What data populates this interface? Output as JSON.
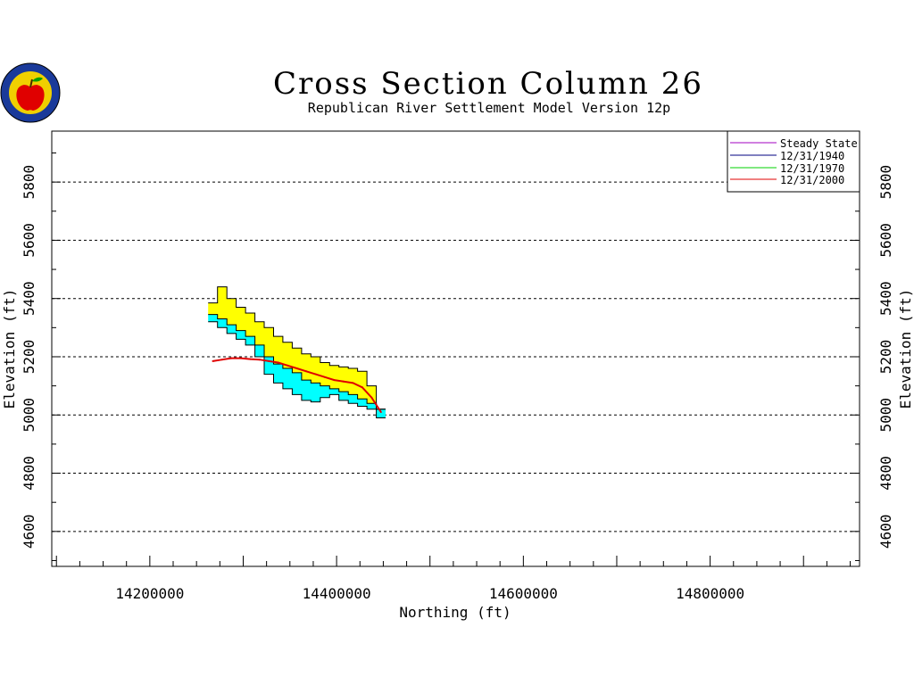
{
  "chart_data": {
    "type": "line",
    "title": "Cross Section Column 26",
    "subtitle": "Republican River Settlement Model Version 12p",
    "xlabel": "Northing (ft)",
    "ylabel": "Elevation (ft)",
    "xlim": [
      14095000,
      14960000
    ],
    "ylim": [
      4480000,
      5975000
    ],
    "xticks": [
      {
        "value": 14200000,
        "label": "14200000"
      },
      {
        "value": 14400000,
        "label": "14400000"
      },
      {
        "value": 14600000,
        "label": "14600000"
      },
      {
        "value": 14800000,
        "label": "14800000"
      }
    ],
    "yticks": [
      {
        "value": 4600,
        "label": "4600"
      },
      {
        "value": 4800,
        "label": "4800"
      },
      {
        "value": 5000,
        "label": "5000"
      },
      {
        "value": 5200,
        "label": "5200"
      },
      {
        "value": 5400,
        "label": "5400"
      },
      {
        "value": 5600,
        "label": "5600"
      },
      {
        "value": 5800,
        "label": "5800"
      }
    ],
    "grid": "horizontal-dashed",
    "legend_position": "top-right",
    "layers": {
      "x": [
        14267500,
        14277500,
        14287500,
        14297500,
        14307500,
        14317500,
        14327500,
        14337500,
        14347500,
        14357500,
        14367500,
        14377500,
        14387500,
        14397500,
        14407500,
        14417500,
        14427500,
        14437500,
        14447500
      ],
      "top": [
        5385,
        5440,
        5400,
        5370,
        5350,
        5320,
        5300,
        5270,
        5250,
        5230,
        5210,
        5200,
        5180,
        5170,
        5165,
        5160,
        5150,
        5100,
        5020
      ],
      "aquifer_top": [
        5345,
        5330,
        5310,
        5290,
        5270,
        5240,
        5200,
        5175,
        5160,
        5145,
        5120,
        5110,
        5100,
        5090,
        5080,
        5070,
        5055,
        5040,
        5020
      ],
      "base": [
        5320,
        5300,
        5280,
        5260,
        5240,
        5200,
        5140,
        5110,
        5090,
        5070,
        5050,
        5045,
        5060,
        5070,
        5050,
        5040,
        5030,
        5020,
        4990
      ]
    },
    "series": [
      {
        "name": "Steady State",
        "color": "#a000c0",
        "x": [],
        "y": []
      },
      {
        "name": "12/31/1940",
        "color": "#000080",
        "x": [],
        "y": []
      },
      {
        "name": "12/31/1970",
        "color": "#00d000",
        "x": [],
        "y": []
      },
      {
        "name": "12/31/2000",
        "color": "#e00000",
        "x": [
          14267500,
          14277500,
          14287500,
          14297500,
          14307500,
          14317500,
          14327500,
          14337500,
          14347500,
          14357500,
          14367500,
          14377500,
          14387500,
          14397500,
          14407500,
          14417500,
          14427500,
          14437500,
          14447500
        ],
        "y": [
          5185,
          5190,
          5195,
          5195,
          5192,
          5190,
          5185,
          5180,
          5170,
          5160,
          5150,
          5140,
          5130,
          5120,
          5115,
          5110,
          5095,
          5060,
          5010
        ]
      }
    ],
    "fill_colors": {
      "unsaturated": "#ffff00",
      "saturated": "#00ffff",
      "frame": "#000000",
      "grid": "#000000"
    }
  }
}
